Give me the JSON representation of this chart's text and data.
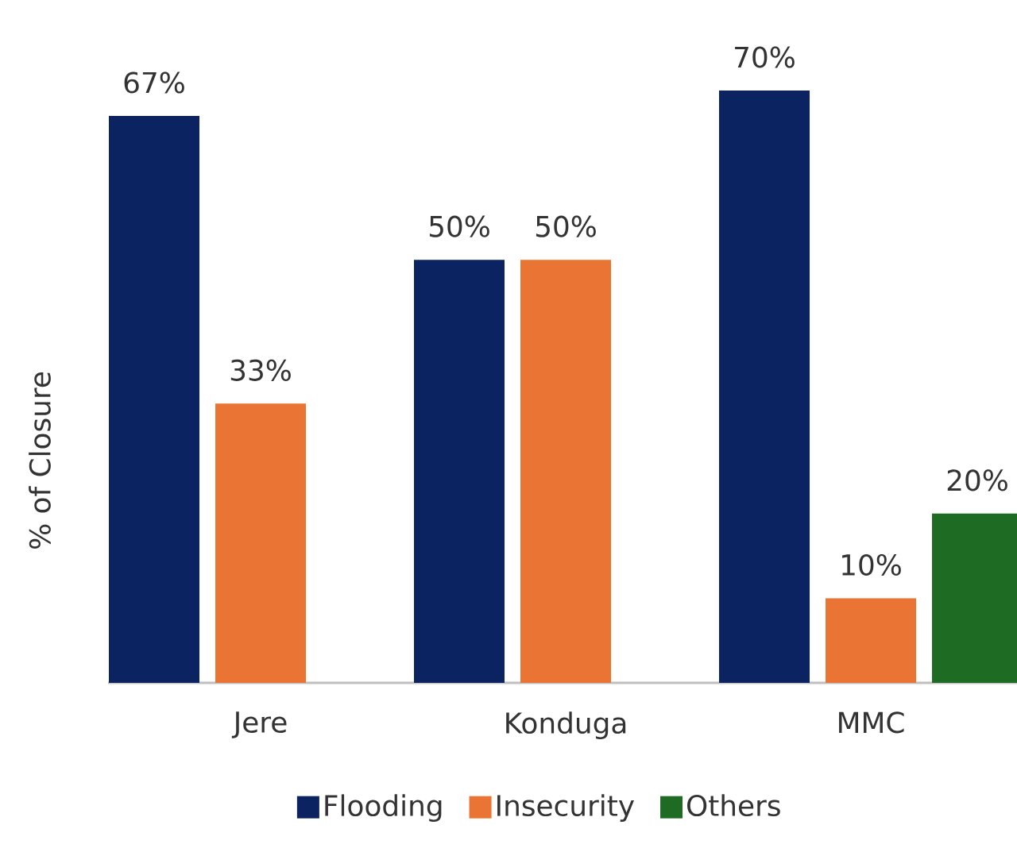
{
  "chart_data": {
    "type": "bar",
    "ylabel": "% of Closure",
    "categories": [
      "Jere",
      "Konduga",
      "MMC"
    ],
    "series": [
      {
        "name": "Flooding",
        "color": "#0b2361",
        "values": [
          67,
          50,
          70
        ],
        "value_labels": [
          "67%",
          "50%",
          "70%"
        ]
      },
      {
        "name": "Insecurity",
        "color": "#ea7434",
        "values": [
          33,
          50,
          10
        ],
        "value_labels": [
          "33%",
          "50%",
          "10%"
        ]
      },
      {
        "name": "Others",
        "color": "#1e6b24",
        "values": [
          null,
          null,
          20
        ],
        "value_labels": [
          null,
          null,
          "20%"
        ]
      }
    ],
    "legend": "bottom",
    "tick_labels": "x"
  }
}
